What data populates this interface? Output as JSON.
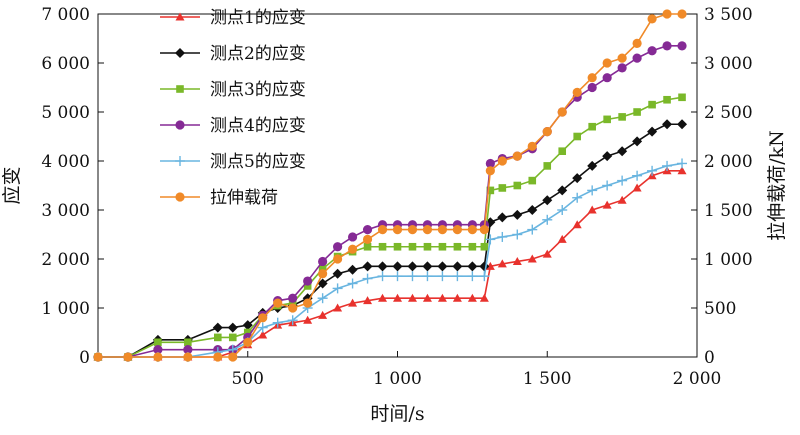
{
  "chart_data": {
    "type": "line",
    "title": "",
    "xlabel": "时间/s",
    "ylabel": "应变",
    "y2label": "拉伸载荷/kN",
    "xlim": [
      0,
      2000
    ],
    "ylim": [
      0,
      7000
    ],
    "y2lim": [
      0,
      3500
    ],
    "x_ticks": [
      500,
      1000,
      1500,
      2000
    ],
    "x_tick_labels": [
      "500",
      "1 000",
      "1 500",
      "2 000"
    ],
    "y_ticks": [
      0,
      1000,
      2000,
      3000,
      4000,
      5000,
      6000,
      7000
    ],
    "y_tick_labels": [
      "0",
      "1 000",
      "2 000",
      "3 000",
      "4 000",
      "5 000",
      "6 000",
      "7 000"
    ],
    "y2_ticks": [
      0,
      500,
      1000,
      1500,
      2000,
      2500,
      3000,
      3500
    ],
    "y2_tick_labels": [
      "0",
      "500",
      "1 000",
      "1 500",
      "2 000",
      "2 500",
      "3 000",
      "3 500"
    ],
    "grid": false,
    "legend_position": "top-left",
    "x": [
      0,
      100,
      200,
      300,
      400,
      450,
      500,
      550,
      600,
      650,
      700,
      750,
      800,
      850,
      900,
      950,
      1000,
      1050,
      1100,
      1150,
      1200,
      1250,
      1290,
      1310,
      1350,
      1400,
      1450,
      1500,
      1550,
      1600,
      1650,
      1700,
      1750,
      1800,
      1850,
      1900,
      1950
    ],
    "series": [
      {
        "name": "测点1的应变",
        "axis": "left",
        "color": "#e8322d",
        "marker": "triangle",
        "values": [
          0,
          0,
          0,
          0,
          0,
          100,
          250,
          450,
          650,
          700,
          750,
          850,
          1000,
          1100,
          1150,
          1200,
          1200,
          1200,
          1200,
          1200,
          1200,
          1200,
          1200,
          1850,
          1900,
          1950,
          2000,
          2100,
          2400,
          2700,
          3000,
          3100,
          3200,
          3450,
          3700,
          3800,
          3800
        ]
      },
      {
        "name": "测点2的应变",
        "axis": "left",
        "color": "#111111",
        "marker": "diamond",
        "values": [
          0,
          0,
          350,
          350,
          600,
          600,
          650,
          900,
          1000,
          1050,
          1200,
          1500,
          1700,
          1780,
          1850,
          1850,
          1850,
          1850,
          1850,
          1850,
          1850,
          1850,
          1850,
          2750,
          2850,
          2900,
          3000,
          3200,
          3400,
          3650,
          3900,
          4100,
          4200,
          4400,
          4600,
          4750,
          4750
        ]
      },
      {
        "name": "测点3的应变",
        "axis": "left",
        "color": "#7ab829",
        "marker": "square",
        "values": [
          0,
          0,
          300,
          300,
          400,
          400,
          500,
          850,
          1050,
          1100,
          1450,
          1800,
          2050,
          2150,
          2250,
          2250,
          2250,
          2250,
          2250,
          2250,
          2250,
          2250,
          2250,
          3400,
          3450,
          3500,
          3600,
          3900,
          4200,
          4500,
          4700,
          4850,
          4900,
          5000,
          5150,
          5250,
          5300
        ]
      },
      {
        "name": "测点4的应变",
        "axis": "left",
        "color": "#852a95",
        "marker": "circle",
        "values": [
          0,
          0,
          150,
          150,
          150,
          150,
          400,
          850,
          1150,
          1200,
          1550,
          1950,
          2250,
          2450,
          2600,
          2700,
          2700,
          2700,
          2700,
          2700,
          2700,
          2700,
          2700,
          3950,
          4050,
          4100,
          4250,
          4600,
          5000,
          5300,
          5500,
          5700,
          5900,
          6100,
          6250,
          6350,
          6350
        ]
      },
      {
        "name": "测点5的应变",
        "axis": "left",
        "color": "#69b5e0",
        "marker": "plus",
        "values": [
          0,
          0,
          0,
          0,
          100,
          150,
          300,
          600,
          700,
          750,
          1000,
          1200,
          1400,
          1500,
          1600,
          1650,
          1650,
          1650,
          1650,
          1650,
          1650,
          1650,
          1650,
          2400,
          2450,
          2500,
          2600,
          2800,
          3000,
          3250,
          3400,
          3500,
          3600,
          3700,
          3800,
          3900,
          3950
        ]
      },
      {
        "name": "拉伸载荷",
        "axis": "right",
        "color": "#f08a28",
        "marker": "circle",
        "values": [
          0,
          0,
          0,
          0,
          0,
          0,
          150,
          400,
          550,
          500,
          550,
          850,
          1000,
          1100,
          1200,
          1300,
          1300,
          1300,
          1300,
          1300,
          1300,
          1300,
          1300,
          1900,
          2000,
          2050,
          2150,
          2300,
          2500,
          2700,
          2850,
          3000,
          3050,
          3200,
          3450,
          3500,
          3500
        ]
      }
    ]
  }
}
